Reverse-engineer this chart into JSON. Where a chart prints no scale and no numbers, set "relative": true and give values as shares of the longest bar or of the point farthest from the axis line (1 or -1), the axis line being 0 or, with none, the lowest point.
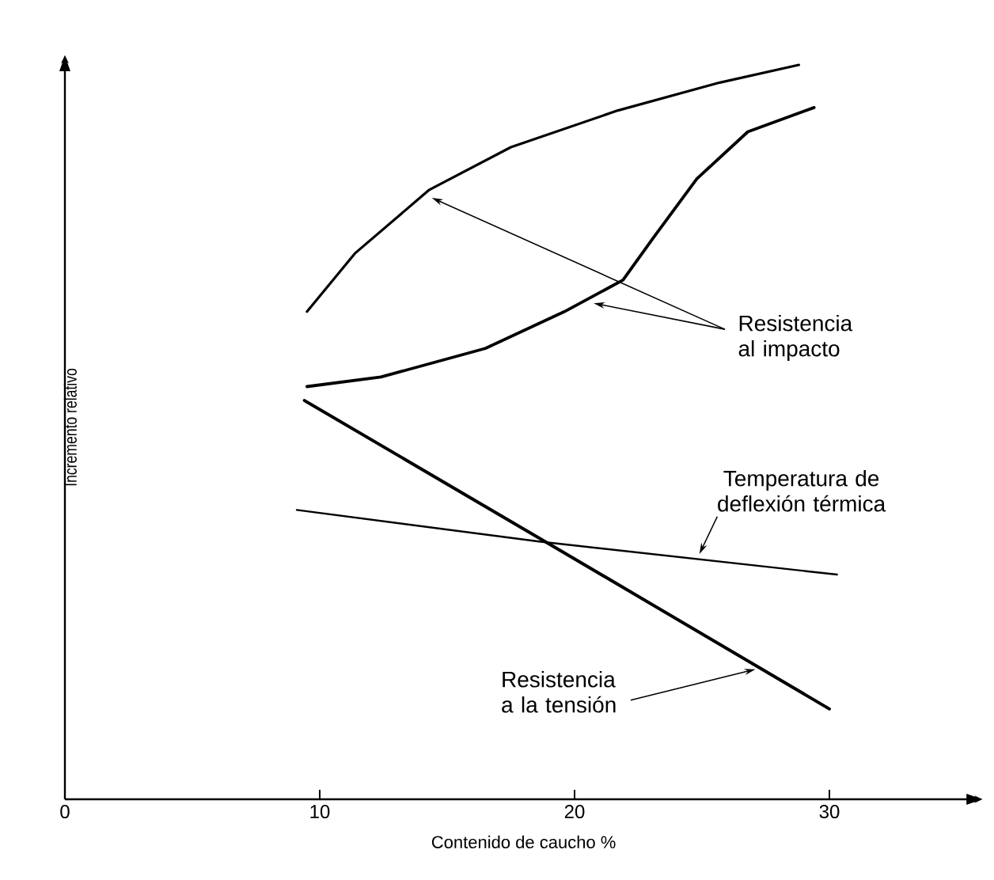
{
  "chart_data": {
    "type": "line",
    "relative": true,
    "xlabel": "Contenido de caucho %",
    "ylabel": "Incremento relativo",
    "xlim": [
      0,
      36
    ],
    "xticks": [
      0,
      10,
      20,
      30
    ],
    "series": [
      {
        "color": "#000000",
        "x": [
          9.5,
          11.4,
          14.3,
          17.5,
          21.7,
          25.7,
          28.8
        ],
        "values": [
          0.664,
          0.744,
          0.83,
          0.888,
          0.938,
          0.976,
          1.0
        ]
      },
      {
        "color": "#000000",
        "x": [
          9.5,
          12.4,
          16.5,
          19.6,
          21.9,
          23.1,
          24.8,
          26.8,
          29.4
        ],
        "values": [
          0.562,
          0.575,
          0.614,
          0.664,
          0.707,
          0.765,
          0.845,
          0.909,
          0.942
        ]
      },
      {
        "color": "#000000",
        "x": [
          9.4,
          18.6,
          30.0
        ],
        "values": [
          0.543,
          0.356,
          0.123
        ]
      },
      {
        "color": "#000000",
        "x": [
          9.1,
          18.6,
          30.3
        ],
        "values": [
          0.394,
          0.351,
          0.306
        ]
      }
    ],
    "annotations": [
      {
        "text": "Resistencia al impacto",
        "x": 14.4,
        "y": 0.819
      },
      {
        "text": "Temperatura de deflexión térmica",
        "x": 24.9,
        "y": 0.334
      },
      {
        "text": "Resistencia a la tensión",
        "x": 27.1,
        "y": 0.177
      }
    ]
  }
}
